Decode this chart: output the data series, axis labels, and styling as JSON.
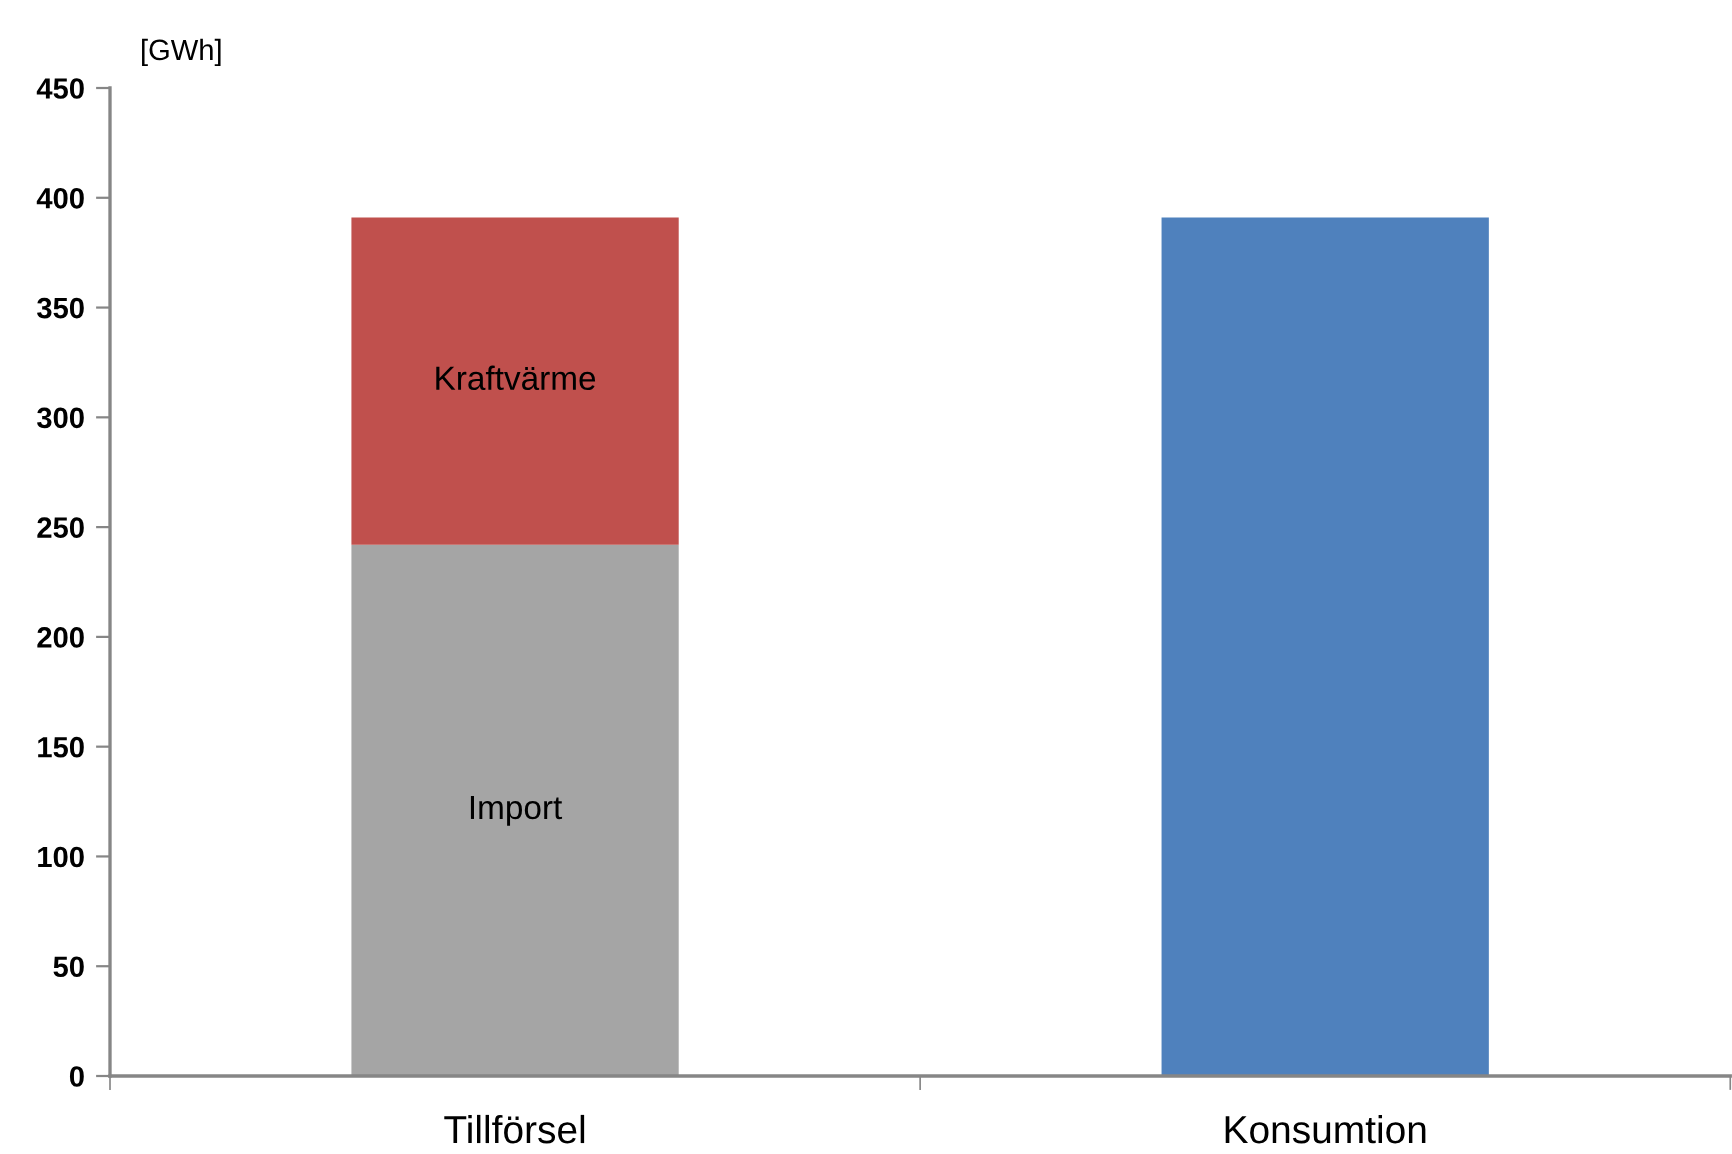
{
  "chart_data": {
    "type": "bar",
    "stacked": true,
    "categories": [
      "Tillförsel",
      "Konsumtion"
    ],
    "ylabel": "[GWh]",
    "ylim": [
      0,
      450
    ],
    "yticks": [
      0,
      50,
      100,
      150,
      200,
      250,
      300,
      350,
      400,
      450
    ],
    "series": [
      {
        "name": "Import",
        "color": "#a5a5a5",
        "values": [
          242,
          null
        ]
      },
      {
        "name": "Kraftvärme",
        "color": "#c0504d",
        "values": [
          149,
          null
        ]
      },
      {
        "color": "#4f81bd",
        "values": [
          null,
          391
        ]
      }
    ],
    "grid": false,
    "legend": false
  }
}
